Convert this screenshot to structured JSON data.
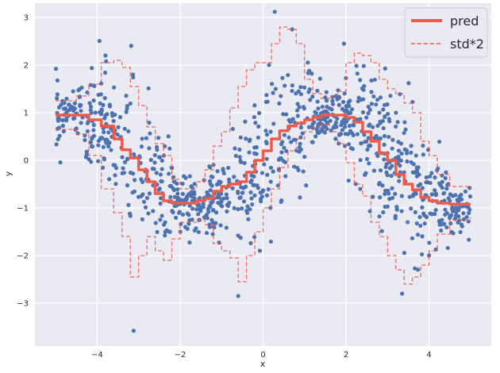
{
  "chart_data": {
    "type": "scatter",
    "xlabel": "x",
    "ylabel": "y",
    "xlim": [
      -5.5,
      5.5
    ],
    "ylim": [
      -3.9,
      3.3
    ],
    "x_ticks": [
      -4,
      -2,
      0,
      2,
      4
    ],
    "y_ticks": [
      -3,
      -2,
      -1,
      0,
      1,
      2,
      3
    ],
    "x_tick_labels": [
      "−4",
      "−2",
      "0",
      "2",
      "4"
    ],
    "y_tick_labels": [
      "−3",
      "−2",
      "−1",
      "0",
      "1",
      "2",
      "3"
    ],
    "grid": true,
    "legend_position": "top-right",
    "legend": [
      {
        "label": "pred",
        "style": "solid",
        "color": "#f05a4a"
      },
      {
        "label": "std*2",
        "style": "dashed",
        "color": "#f05a4a"
      }
    ],
    "scatter": {
      "color": "#4c72b0",
      "count": 1000,
      "x_range": [
        -5,
        5
      ],
      "trend": "sin(x)",
      "note_points": [
        {
          "x": 0.28,
          "y": 3.12
        },
        {
          "x": -3.12,
          "y": -3.58
        },
        {
          "x": -0.6,
          "y": -2.85
        },
        {
          "x": 3.35,
          "y": -2.8
        },
        {
          "x": 0.7,
          "y": 2.75
        },
        {
          "x": 1.95,
          "y": 2.45
        },
        {
          "x": -3.8,
          "y": 2.2
        }
      ]
    },
    "series": [
      {
        "name": "pred",
        "style": "solid",
        "x": [
          -5.0,
          -4.5,
          -4.2,
          -3.9,
          -3.6,
          -3.4,
          -3.2,
          -3.0,
          -2.8,
          -2.6,
          -2.4,
          -2.2,
          -2.0,
          -1.8,
          -1.6,
          -1.4,
          -1.2,
          -1.0,
          -0.8,
          -0.6,
          -0.4,
          -0.2,
          0.0,
          0.2,
          0.4,
          0.6,
          0.8,
          1.0,
          1.2,
          1.4,
          1.6,
          1.8,
          2.0,
          2.2,
          2.4,
          2.6,
          2.8,
          3.0,
          3.2,
          3.4,
          3.6,
          3.8,
          4.0,
          4.2,
          4.5,
          5.0
        ],
        "y": [
          0.95,
          0.95,
          0.85,
          0.72,
          0.45,
          0.22,
          0.05,
          -0.2,
          -0.45,
          -0.7,
          -0.85,
          -0.9,
          -0.9,
          -0.9,
          -0.85,
          -0.8,
          -0.65,
          -0.55,
          -0.5,
          -0.45,
          -0.25,
          0.0,
          0.2,
          0.45,
          0.62,
          0.72,
          0.78,
          0.85,
          0.9,
          0.95,
          0.95,
          0.95,
          0.9,
          0.8,
          0.6,
          0.4,
          0.15,
          0.0,
          -0.3,
          -0.5,
          -0.62,
          -0.78,
          -0.85,
          -0.9,
          -0.92,
          -0.92
        ]
      },
      {
        "name": "std*2",
        "style": "dashed",
        "role": "upper",
        "x": [
          -5.0,
          -4.5,
          -4.2,
          -3.9,
          -3.6,
          -3.4,
          -3.2,
          -3.0,
          -2.8,
          -2.6,
          -2.4,
          -2.2,
          -2.0,
          -1.8,
          -1.6,
          -1.4,
          -1.2,
          -1.0,
          -0.8,
          -0.6,
          -0.4,
          -0.2,
          0.0,
          0.2,
          0.4,
          0.6,
          0.8,
          1.0,
          1.2,
          1.4,
          1.6,
          1.8,
          2.0,
          2.2,
          2.4,
          2.6,
          2.8,
          3.0,
          3.2,
          3.4,
          3.6,
          3.8,
          4.0,
          4.2,
          4.5,
          5.0
        ],
        "y": [
          1.25,
          1.35,
          1.6,
          2.05,
          2.1,
          1.95,
          1.55,
          1.15,
          0.7,
          0.35,
          0.1,
          -0.4,
          -0.6,
          -0.6,
          -0.45,
          -0.2,
          0.3,
          0.6,
          1.1,
          1.55,
          1.9,
          2.05,
          2.05,
          2.45,
          2.8,
          2.75,
          2.45,
          1.7,
          1.4,
          1.3,
          1.35,
          1.45,
          2.05,
          2.25,
          2.2,
          2.05,
          1.7,
          1.5,
          1.4,
          1.2,
          1.0,
          0.4,
          0.1,
          -0.3,
          -0.55,
          -0.6
        ]
      },
      {
        "name": "std*2",
        "style": "dashed",
        "role": "lower",
        "x": [
          -5.0,
          -4.5,
          -4.2,
          -3.9,
          -3.6,
          -3.4,
          -3.2,
          -3.0,
          -2.8,
          -2.6,
          -2.4,
          -2.2,
          -2.0,
          -1.8,
          -1.6,
          -1.4,
          -1.2,
          -1.0,
          -0.8,
          -0.6,
          -0.4,
          -0.2,
          0.0,
          0.2,
          0.4,
          0.6,
          0.8,
          1.0,
          1.2,
          1.4,
          1.6,
          1.8,
          2.0,
          2.2,
          2.4,
          2.6,
          2.8,
          3.0,
          3.2,
          3.4,
          3.6,
          3.8,
          4.0,
          4.2,
          4.5,
          5.0
        ],
        "y": [
          0.65,
          0.55,
          0.1,
          -0.6,
          -1.1,
          -1.6,
          -2.45,
          -2.0,
          -1.6,
          -1.9,
          -2.1,
          -1.65,
          -1.3,
          -1.3,
          -1.25,
          -1.35,
          -1.75,
          -1.9,
          -2.05,
          -2.55,
          -2.0,
          -1.5,
          -1.0,
          -0.6,
          -0.15,
          0.2,
          0.45,
          0.6,
          0.7,
          0.75,
          0.6,
          0.35,
          -0.05,
          -0.5,
          -0.75,
          -1.3,
          -1.6,
          -2.0,
          -2.3,
          -2.6,
          -2.45,
          -2.2,
          -1.9,
          -1.55,
          -1.25,
          -1.2
        ]
      }
    ]
  }
}
